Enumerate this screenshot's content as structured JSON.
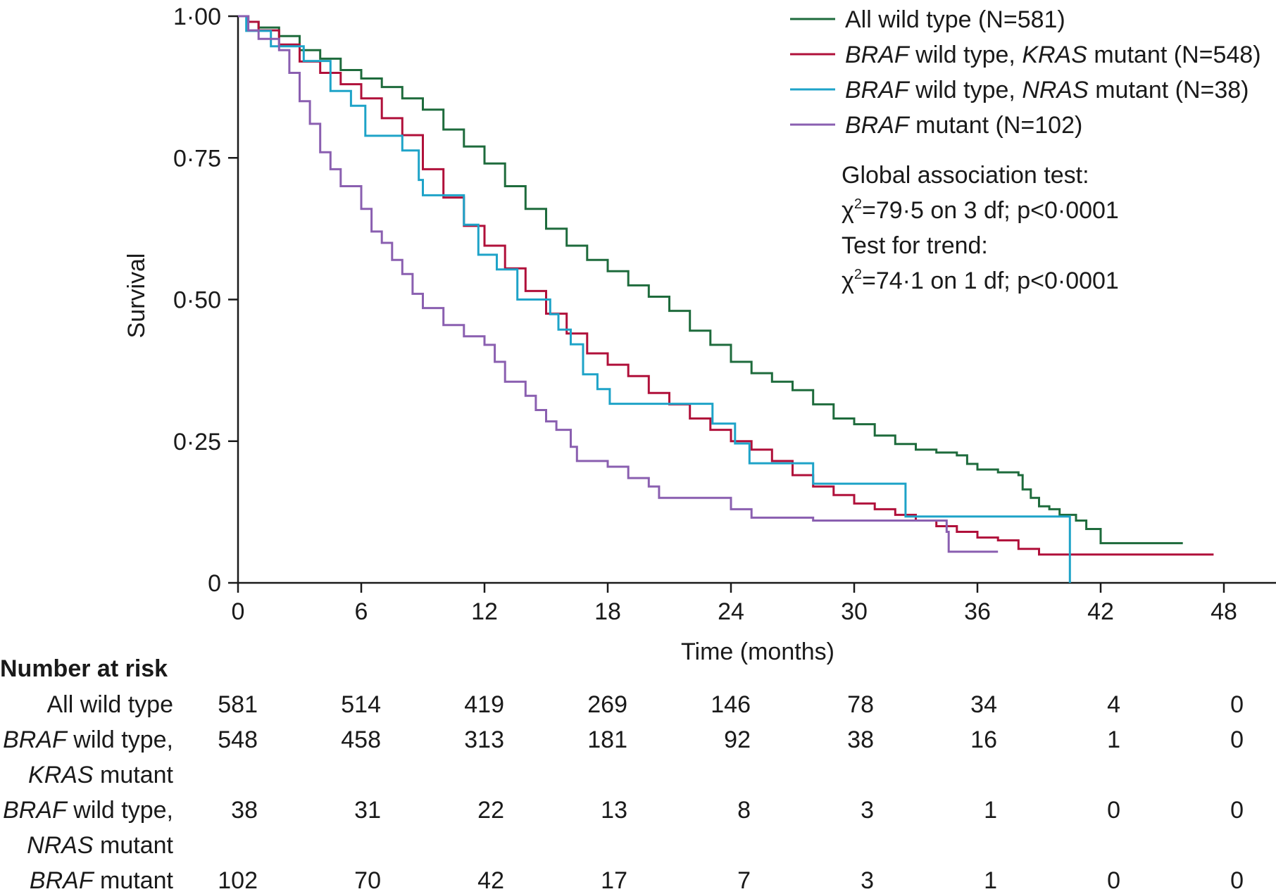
{
  "chart_data": {
    "type": "line",
    "subtype": "kaplan-meier step plot",
    "title": "",
    "xlabel": "Time (months)",
    "ylabel": "Survival",
    "xlim": [
      0,
      48
    ],
    "ylim": [
      0,
      1
    ],
    "x_ticks": [
      0,
      6,
      12,
      18,
      24,
      30,
      36,
      42,
      48
    ],
    "x_tick_labels": [
      "0",
      "6",
      "12",
      "18",
      "24",
      "30",
      "36",
      "42",
      "48"
    ],
    "y_ticks": [
      0,
      0.25,
      0.5,
      0.75,
      1.0
    ],
    "y_tick_labels": [
      "0",
      "0·25",
      "0·50",
      "0·75",
      "1·00"
    ],
    "grid": false,
    "legend_position": "top-right",
    "series": [
      {
        "key": "all_wild_type",
        "color": "#1e6b3c",
        "legend": [
          {
            "text": "All wild type (N=581)",
            "italic": false
          }
        ],
        "points": [
          [
            0,
            1.0
          ],
          [
            0.5,
            0.99
          ],
          [
            1,
            0.98
          ],
          [
            2,
            0.965
          ],
          [
            3,
            0.94
          ],
          [
            4,
            0.925
          ],
          [
            5,
            0.905
          ],
          [
            6,
            0.89
          ],
          [
            7,
            0.875
          ],
          [
            8,
            0.855
          ],
          [
            9,
            0.835
          ],
          [
            10,
            0.8
          ],
          [
            11,
            0.77
          ],
          [
            12,
            0.74
          ],
          [
            13,
            0.7
          ],
          [
            14,
            0.66
          ],
          [
            15,
            0.625
          ],
          [
            16,
            0.595
          ],
          [
            17,
            0.57
          ],
          [
            18,
            0.55
          ],
          [
            19,
            0.525
          ],
          [
            20,
            0.505
          ],
          [
            21,
            0.48
          ],
          [
            22,
            0.445
          ],
          [
            23,
            0.42
          ],
          [
            24,
            0.39
          ],
          [
            25,
            0.37
          ],
          [
            26,
            0.355
          ],
          [
            27,
            0.34
          ],
          [
            28,
            0.315
          ],
          [
            29,
            0.29
          ],
          [
            30,
            0.28
          ],
          [
            31,
            0.26
          ],
          [
            32,
            0.245
          ],
          [
            33,
            0.235
          ],
          [
            34,
            0.23
          ],
          [
            35,
            0.225
          ],
          [
            35.5,
            0.21
          ],
          [
            36,
            0.2
          ],
          [
            37,
            0.195
          ],
          [
            38,
            0.19
          ],
          [
            38.2,
            0.165
          ],
          [
            38.6,
            0.15
          ],
          [
            39,
            0.135
          ],
          [
            39.5,
            0.13
          ],
          [
            40,
            0.12
          ],
          [
            40.8,
            0.11
          ],
          [
            41.3,
            0.095
          ],
          [
            42,
            0.07
          ],
          [
            46,
            0.07
          ]
        ]
      },
      {
        "key": "braf_wt_kras_mut",
        "color": "#b0103a",
        "legend": [
          {
            "text": "BRAF",
            "italic": true
          },
          {
            "text": " wild type, ",
            "italic": false
          },
          {
            "text": "KRAS",
            "italic": true
          },
          {
            "text": " mutant (N=548)",
            "italic": false
          }
        ],
        "points": [
          [
            0,
            1.0
          ],
          [
            0.5,
            0.99
          ],
          [
            1,
            0.975
          ],
          [
            2,
            0.95
          ],
          [
            3,
            0.92
          ],
          [
            4,
            0.9
          ],
          [
            5,
            0.88
          ],
          [
            6,
            0.855
          ],
          [
            7,
            0.82
          ],
          [
            8,
            0.79
          ],
          [
            9,
            0.73
          ],
          [
            10,
            0.68
          ],
          [
            11,
            0.63
          ],
          [
            12,
            0.595
          ],
          [
            13,
            0.555
          ],
          [
            14,
            0.515
          ],
          [
            15,
            0.475
          ],
          [
            16,
            0.44
          ],
          [
            17,
            0.405
          ],
          [
            18,
            0.385
          ],
          [
            19,
            0.365
          ],
          [
            20,
            0.335
          ],
          [
            21,
            0.315
          ],
          [
            22,
            0.29
          ],
          [
            23,
            0.27
          ],
          [
            24,
            0.25
          ],
          [
            25,
            0.235
          ],
          [
            26,
            0.215
          ],
          [
            27,
            0.19
          ],
          [
            28,
            0.17
          ],
          [
            29,
            0.155
          ],
          [
            30,
            0.14
          ],
          [
            31,
            0.13
          ],
          [
            32,
            0.12
          ],
          [
            33,
            0.11
          ],
          [
            34,
            0.1
          ],
          [
            35,
            0.09
          ],
          [
            36,
            0.08
          ],
          [
            37,
            0.075
          ],
          [
            38,
            0.06
          ],
          [
            39,
            0.05
          ],
          [
            47.5,
            0.05
          ]
        ]
      },
      {
        "key": "braf_wt_nras_mut",
        "color": "#1ea3c8",
        "legend": [
          {
            "text": "BRAF",
            "italic": true
          },
          {
            "text": " wild type, ",
            "italic": false
          },
          {
            "text": "NRAS",
            "italic": true
          },
          {
            "text": " mutant (N=38)",
            "italic": false
          }
        ],
        "points": [
          [
            0,
            1.0
          ],
          [
            0.4,
            0.974
          ],
          [
            1.6,
            0.974
          ],
          [
            1.6,
            0.947
          ],
          [
            3.2,
            0.947
          ],
          [
            3.2,
            0.921
          ],
          [
            4.5,
            0.921
          ],
          [
            4.5,
            0.868
          ],
          [
            5.5,
            0.868
          ],
          [
            5.5,
            0.842
          ],
          [
            6.2,
            0.842
          ],
          [
            6.2,
            0.789
          ],
          [
            8,
            0.789
          ],
          [
            8,
            0.763
          ],
          [
            8.8,
            0.763
          ],
          [
            8.8,
            0.711
          ],
          [
            9,
            0.711
          ],
          [
            9,
            0.684
          ],
          [
            11,
            0.684
          ],
          [
            11,
            0.632
          ],
          [
            11.7,
            0.632
          ],
          [
            11.7,
            0.579
          ],
          [
            12.6,
            0.579
          ],
          [
            12.6,
            0.553
          ],
          [
            13.6,
            0.553
          ],
          [
            13.6,
            0.5
          ],
          [
            15.2,
            0.5
          ],
          [
            15.2,
            0.474
          ],
          [
            15.6,
            0.474
          ],
          [
            15.6,
            0.447
          ],
          [
            16.2,
            0.447
          ],
          [
            16.2,
            0.421
          ],
          [
            16.8,
            0.421
          ],
          [
            16.8,
            0.368
          ],
          [
            17.5,
            0.368
          ],
          [
            17.5,
            0.342
          ],
          [
            18.1,
            0.342
          ],
          [
            18.1,
            0.316
          ],
          [
            23.1,
            0.316
          ],
          [
            23.1,
            0.281
          ],
          [
            24.2,
            0.281
          ],
          [
            24.2,
            0.246
          ],
          [
            24.9,
            0.246
          ],
          [
            24.9,
            0.211
          ],
          [
            28,
            0.211
          ],
          [
            28,
            0.175
          ],
          [
            32.5,
            0.175
          ],
          [
            32.5,
            0.117
          ],
          [
            40.5,
            0.117
          ],
          [
            40.5,
            0
          ]
        ]
      },
      {
        "key": "braf_mut",
        "color": "#8a5fb0",
        "legend": [
          {
            "text": "BRAF",
            "italic": true
          },
          {
            "text": " mutant (N=102)",
            "italic": false
          }
        ],
        "points": [
          [
            0,
            1.0
          ],
          [
            0.5,
            0.975
          ],
          [
            1,
            0.96
          ],
          [
            2,
            0.94
          ],
          [
            2.5,
            0.9
          ],
          [
            3,
            0.85
          ],
          [
            3.5,
            0.81
          ],
          [
            4,
            0.76
          ],
          [
            4.5,
            0.73
          ],
          [
            5,
            0.7
          ],
          [
            6,
            0.66
          ],
          [
            6.5,
            0.62
          ],
          [
            7,
            0.6
          ],
          [
            7.5,
            0.57
          ],
          [
            8,
            0.545
          ],
          [
            8.5,
            0.51
          ],
          [
            9,
            0.485
          ],
          [
            10,
            0.455
          ],
          [
            11,
            0.435
          ],
          [
            12,
            0.42
          ],
          [
            12.5,
            0.39
          ],
          [
            13,
            0.355
          ],
          [
            14,
            0.33
          ],
          [
            14.5,
            0.305
          ],
          [
            15,
            0.285
          ],
          [
            15.5,
            0.27
          ],
          [
            16.2,
            0.24
          ],
          [
            16.5,
            0.215
          ],
          [
            18,
            0.205
          ],
          [
            19,
            0.185
          ],
          [
            20,
            0.17
          ],
          [
            20.5,
            0.15
          ],
          [
            23,
            0.15
          ],
          [
            24,
            0.13
          ],
          [
            25,
            0.115
          ],
          [
            28,
            0.11
          ],
          [
            34,
            0.11
          ],
          [
            34.5,
            0.09
          ],
          [
            34.6,
            0.055
          ],
          [
            37,
            0.055
          ]
        ]
      }
    ],
    "annotations": [
      {
        "text": "Global association test:",
        "superscript": ""
      },
      {
        "text": "χ",
        "superscript": "2",
        "after": "=79·5 on 3 df; p<0·0001"
      },
      {
        "text": "Test for trend:",
        "superscript": ""
      },
      {
        "text": "χ",
        "superscript": "2",
        "after": "=74·1 on 1 df; p<0·0001"
      }
    ],
    "risk_table": {
      "title": "Number at risk",
      "times": [
        0,
        6,
        12,
        18,
        24,
        30,
        36,
        42,
        48
      ],
      "rows": [
        {
          "label": [
            [
              {
                "text": "All wild type",
                "italic": false
              }
            ]
          ],
          "values": [
            "581",
            "514",
            "419",
            "269",
            "146",
            "78",
            "34",
            "4",
            "0"
          ]
        },
        {
          "label": [
            [
              {
                "text": "BRAF",
                "italic": true
              },
              {
                "text": " wild type,",
                "italic": false
              }
            ],
            [
              {
                "text": "KRAS",
                "italic": true
              },
              {
                "text": " mutant",
                "italic": false
              }
            ]
          ],
          "values": [
            "548",
            "458",
            "313",
            "181",
            "92",
            "38",
            "16",
            "1",
            "0"
          ]
        },
        {
          "label": [
            [
              {
                "text": "BRAF",
                "italic": true
              },
              {
                "text": " wild type,",
                "italic": false
              }
            ],
            [
              {
                "text": "NRAS",
                "italic": true
              },
              {
                "text": " mutant",
                "italic": false
              }
            ]
          ],
          "values": [
            "38",
            "31",
            "22",
            "13",
            "8",
            "3",
            "1",
            "0",
            "0"
          ]
        },
        {
          "label": [
            [
              {
                "text": "BRAF",
                "italic": true
              },
              {
                "text": " mutant",
                "italic": false
              }
            ]
          ],
          "values": [
            "102",
            "70",
            "42",
            "17",
            "7",
            "3",
            "1",
            "0",
            "0"
          ]
        }
      ]
    }
  }
}
